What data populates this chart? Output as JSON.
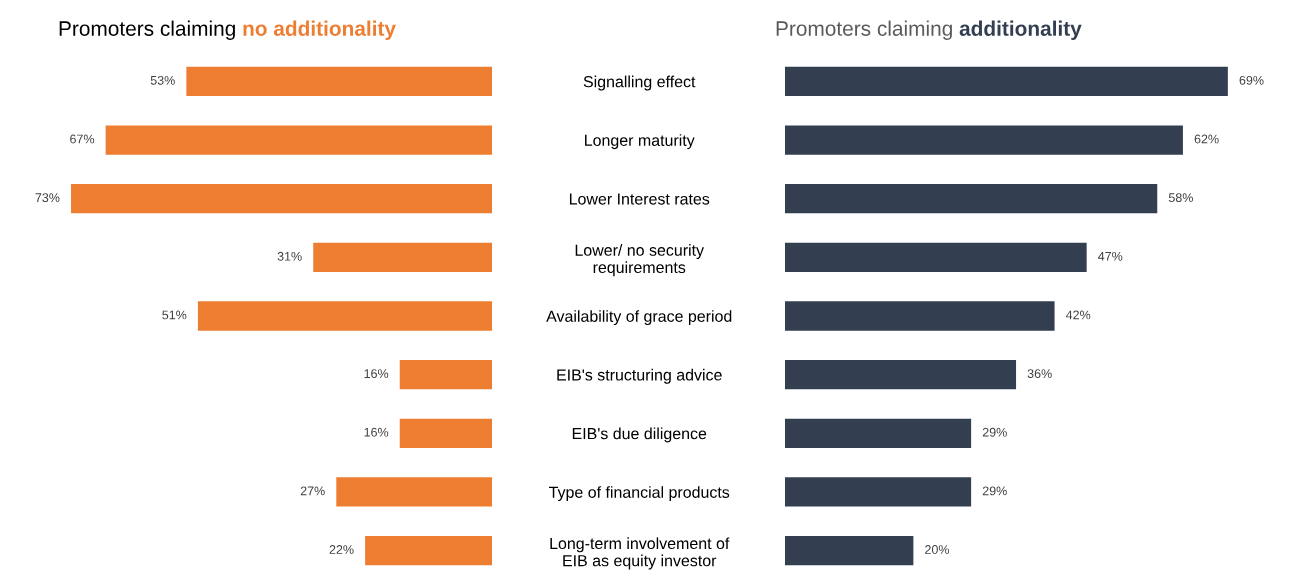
{
  "chart_data": [
    {
      "type": "bar",
      "orientation": "horizontal",
      "title": "Promoters claiming no additionality",
      "categories": [
        "Signalling effect",
        "Longer maturity",
        "Lower Interest rates",
        "Lower/ no security\nrequirements",
        "Availability of grace period",
        "EIB's structuring advice",
        "EIB's due diligence",
        "Type of financial products",
        "Long-term involvement of\nEIB as equity investor"
      ],
      "series": [
        {
          "color": "#ed7d31",
          "values": [
            53,
            67,
            73,
            31,
            51,
            16,
            16,
            27,
            22
          ],
          "value_labels": [
            "53%",
            "67%",
            "73%",
            "31%",
            "51%",
            "16%",
            "16%",
            "27%",
            "22%"
          ]
        }
      ],
      "tick_labels": "y"
    },
    {
      "type": "bar",
      "orientation": "horizontal",
      "title": "Promoters claiming additionality",
      "series": [
        {
          "color": "#333f50",
          "values": [
            69,
            62,
            58,
            47,
            42,
            36,
            29,
            29,
            20
          ],
          "value_labels": [
            "69%",
            "62%",
            "58%",
            "47%",
            "42%",
            "36%",
            "29%",
            "29%",
            "20%"
          ]
        }
      ],
      "tick_labels": false
    }
  ]
}
